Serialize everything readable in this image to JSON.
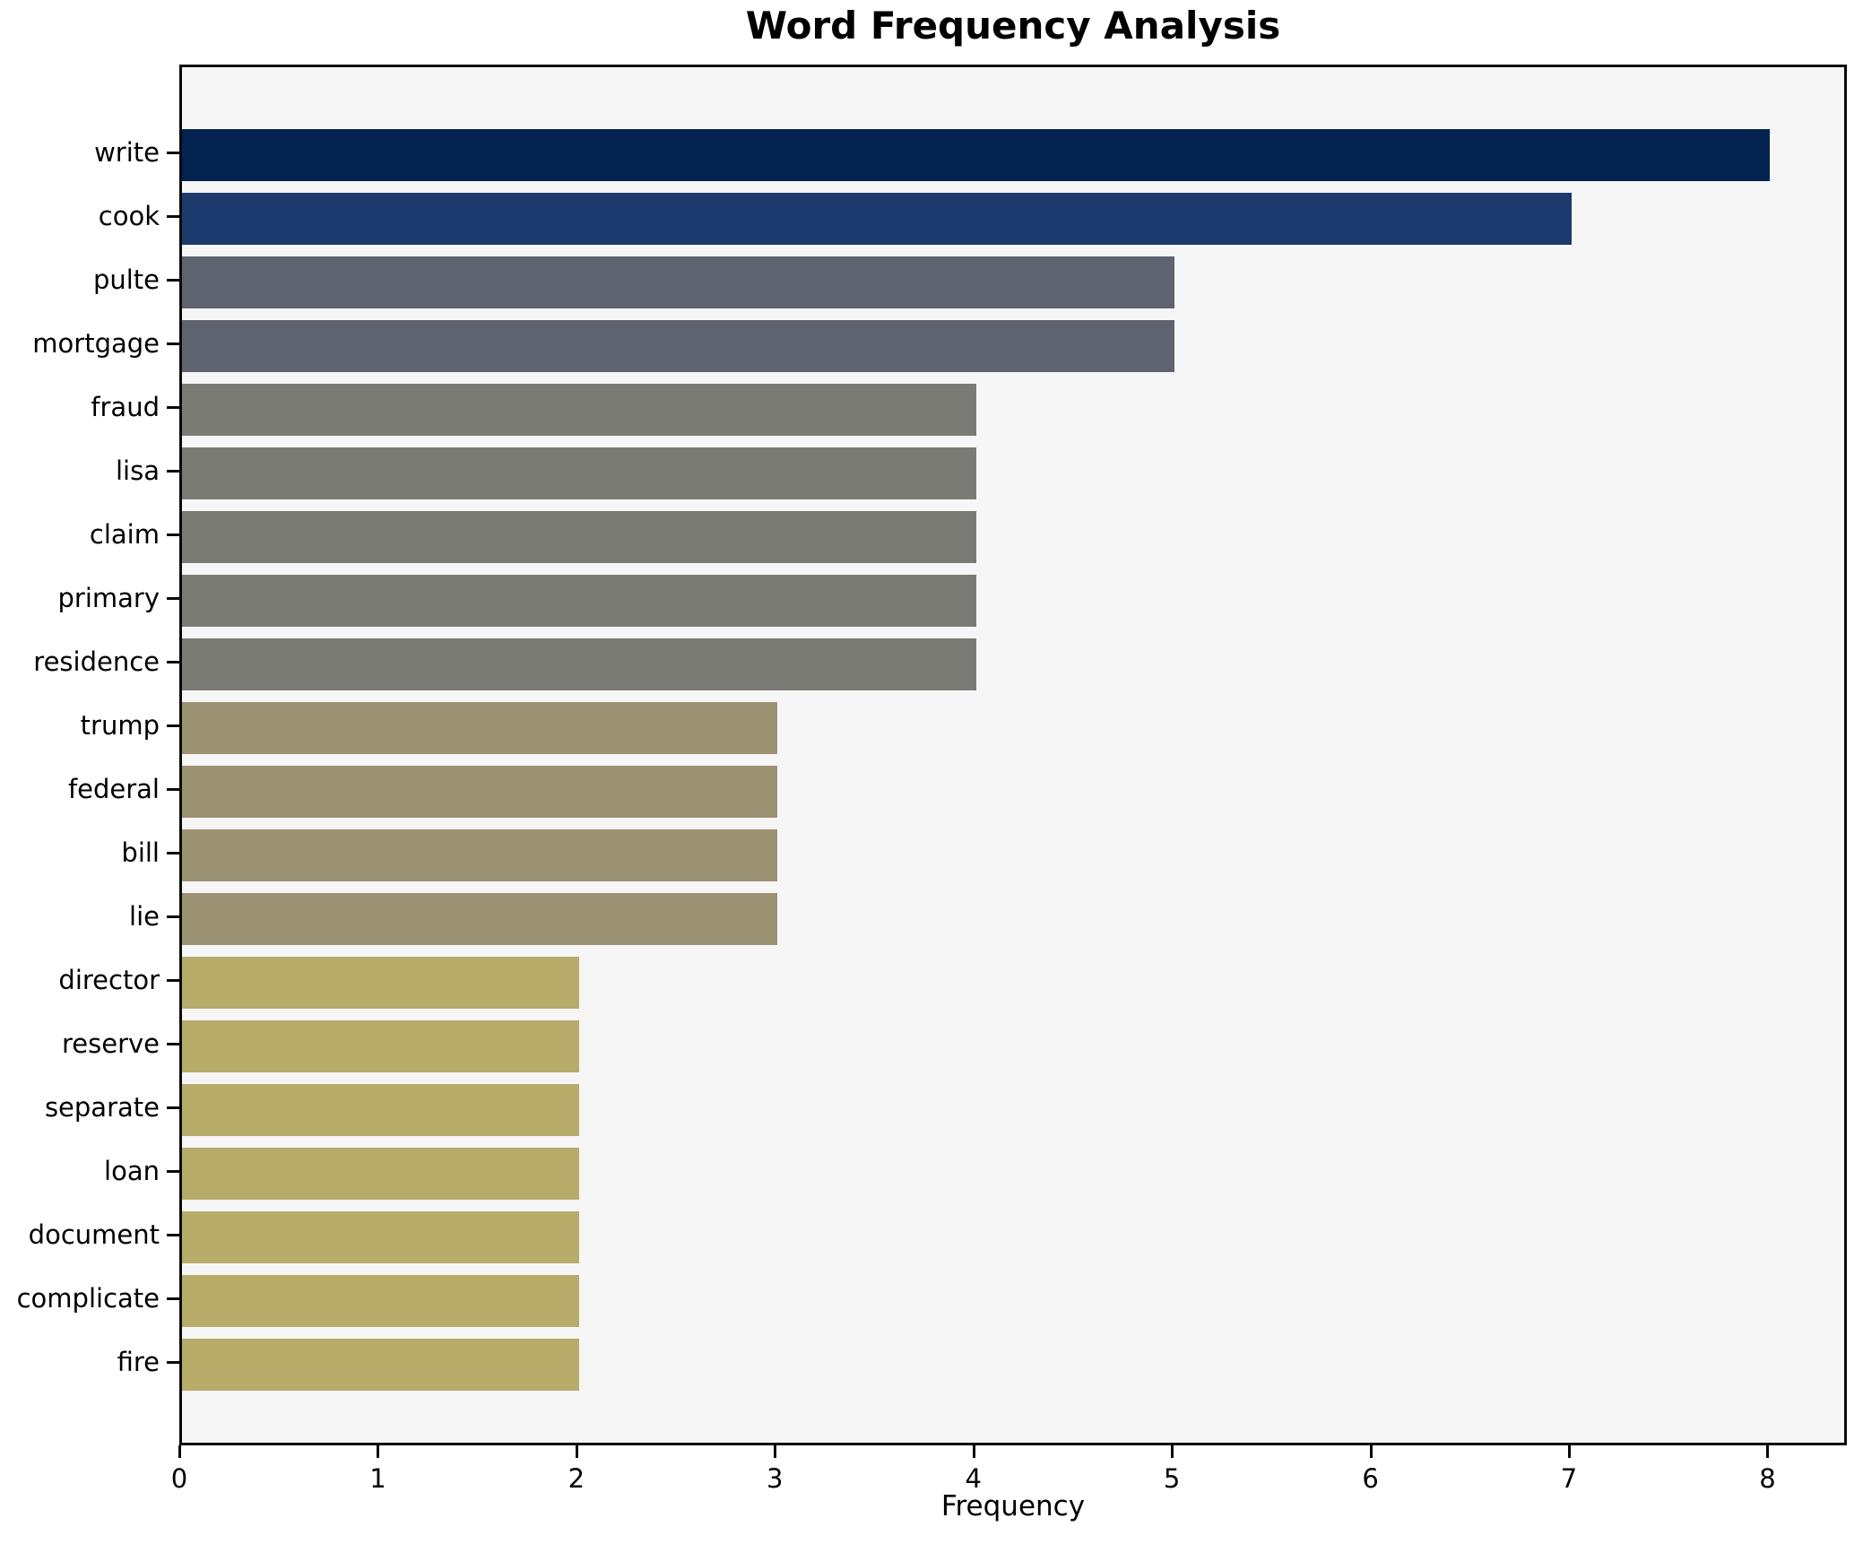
{
  "figure": {
    "title": "Word Frequency Analysis",
    "xlabel": "Frequency",
    "background_color": "#ffffff",
    "plot_background_color": "#f6f6f7",
    "spine_color": "#0a0a0a"
  },
  "chart_data": {
    "type": "bar",
    "orientation": "horizontal",
    "title": "Word Frequency Analysis",
    "xlabel": "Frequency",
    "ylabel": "",
    "grid": false,
    "legend_position": "none",
    "xlim": [
      0,
      8.4
    ],
    "xticks": [
      0,
      1,
      2,
      3,
      4,
      5,
      6,
      7,
      8
    ],
    "categories": [
      "write",
      "cook",
      "pulte",
      "mortgage",
      "fraud",
      "lisa",
      "claim",
      "primary",
      "residence",
      "trump",
      "federal",
      "bill",
      "lie",
      "director",
      "reserve",
      "separate",
      "loan",
      "document",
      "complicate",
      "fire"
    ],
    "values": [
      8,
      7,
      5,
      5,
      4,
      4,
      4,
      4,
      4,
      3,
      3,
      3,
      3,
      2,
      2,
      2,
      2,
      2,
      2,
      2
    ],
    "colors": [
      "#032250",
      "#1d3a6e",
      "#5f6370",
      "#5f6370",
      "#7b7b75",
      "#7b7b75",
      "#7b7b75",
      "#7b7b75",
      "#7b7b75",
      "#9b9273",
      "#9b9273",
      "#9b9273",
      "#9b9273",
      "#b7ac6a",
      "#b7ac6a",
      "#b7ac6a",
      "#b7ac6a",
      "#b7ac6a",
      "#b7ac6a",
      "#b7ac6a"
    ]
  }
}
